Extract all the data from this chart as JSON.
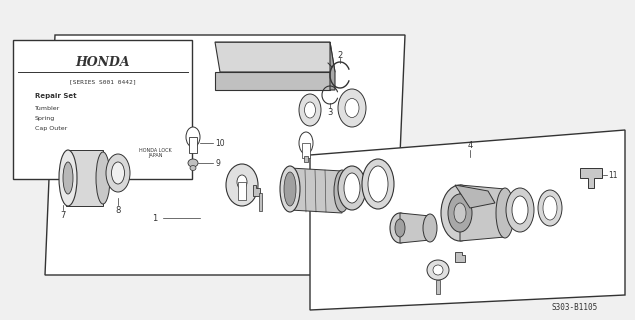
{
  "bg_color": "#f0f0f0",
  "line_color": "#333333",
  "thin_line": "#555555",
  "white": "#ffffff",
  "light_gray": "#e8e8e8",
  "mid_gray": "#c0c0c0",
  "dark_gray": "#888888",
  "honda_text": "HONDA",
  "series_text": "[SERIES S001 0442]",
  "repair_text": "Repair Set",
  "tumbler_text": "Tumbler",
  "spring_text": "Spring",
  "cap_text": "Cap Outer",
  "honda_lock": "HONDA LOCK\nJAPAN",
  "diagram_code": "S303-B1105"
}
